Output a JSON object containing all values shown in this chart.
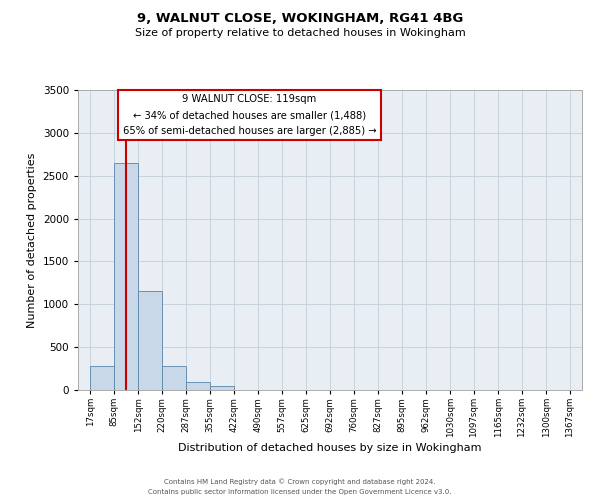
{
  "title1": "9, WALNUT CLOSE, WOKINGHAM, RG41 4BG",
  "title2": "Size of property relative to detached houses in Wokingham",
  "xlabel": "Distribution of detached houses by size in Wokingham",
  "ylabel": "Number of detached properties",
  "bar_edges": [
    17,
    85,
    152,
    220,
    287,
    355,
    422,
    490,
    557,
    625,
    692,
    760,
    827,
    895,
    962,
    1030,
    1097,
    1165,
    1232,
    1300,
    1367
  ],
  "bar_heights": [
    280,
    2650,
    1150,
    280,
    90,
    50,
    0,
    0,
    0,
    0,
    0,
    0,
    0,
    0,
    0,
    0,
    0,
    0,
    0,
    0
  ],
  "bar_color": "#c8d8e8",
  "bar_edgecolor": "#5b85a8",
  "property_line_x": 119,
  "ylim": [
    0,
    3500
  ],
  "yticks": [
    0,
    500,
    1000,
    1500,
    2000,
    2500,
    3000,
    3500
  ],
  "annotation_title": "9 WALNUT CLOSE: 119sqm",
  "annotation_line1": "← 34% of detached houses are smaller (1,488)",
  "annotation_line2": "65% of semi-detached houses are larger (2,885) →",
  "annotation_box_facecolor": "#ffffff",
  "annotation_box_edgecolor": "#cc0000",
  "grid_color": "#c8d4dc",
  "background_color": "#e8eef4",
  "footer1": "Contains HM Land Registry data © Crown copyright and database right 2024.",
  "footer2": "Contains public sector information licensed under the Open Government Licence v3.0."
}
